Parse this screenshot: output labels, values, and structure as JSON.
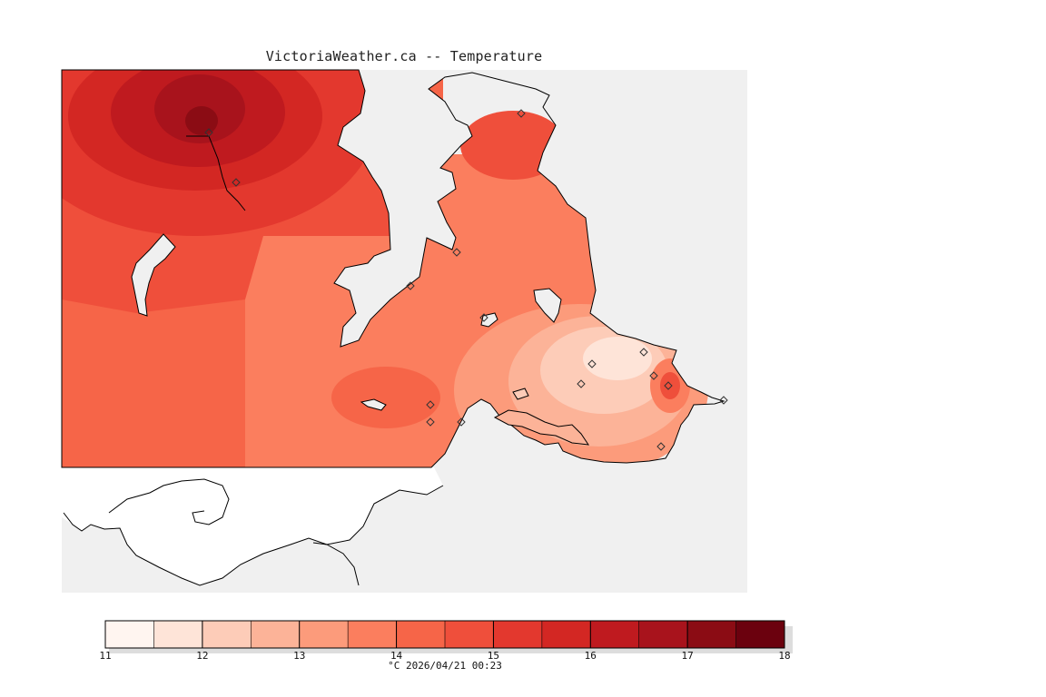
{
  "title": "VictoriaWeather.ca -- Temperature",
  "footer": "°C  2026/04/21 00:23",
  "colors": {
    "ocean": "#f0f0f0",
    "outside": "#ffffff",
    "coast": "#000000"
  },
  "legend": {
    "unit": "°C",
    "min": 11,
    "max": 18,
    "tick_labels": [
      "11",
      "12",
      "13",
      "14",
      "15",
      "16",
      "17",
      "18"
    ],
    "bins": [
      {
        "from": 11.0,
        "to": 11.5,
        "color": "#fff5f0"
      },
      {
        "from": 11.5,
        "to": 12.0,
        "color": "#fee4d8"
      },
      {
        "from": 12.0,
        "to": 12.5,
        "color": "#fdccb8"
      },
      {
        "from": 12.5,
        "to": 13.0,
        "color": "#fcb398"
      },
      {
        "from": 13.0,
        "to": 13.5,
        "color": "#fc9b7b"
      },
      {
        "from": 13.5,
        "to": 14.0,
        "color": "#fb7e5e"
      },
      {
        "from": 14.0,
        "to": 14.5,
        "color": "#f66548"
      },
      {
        "from": 14.5,
        "to": 15.0,
        "color": "#ef4f3b"
      },
      {
        "from": 15.0,
        "to": 15.5,
        "color": "#e3382e"
      },
      {
        "from": 15.5,
        "to": 16.0,
        "color": "#d32723"
      },
      {
        "from": 16.0,
        "to": 16.5,
        "color": "#bf1a1f"
      },
      {
        "from": 16.5,
        "to": 17.0,
        "color": "#a8131c"
      },
      {
        "from": 17.0,
        "to": 17.5,
        "color": "#8b0c14"
      },
      {
        "from": 17.5,
        "to": 18.0,
        "color": "#6b010e"
      }
    ]
  },
  "station_count": 16
}
